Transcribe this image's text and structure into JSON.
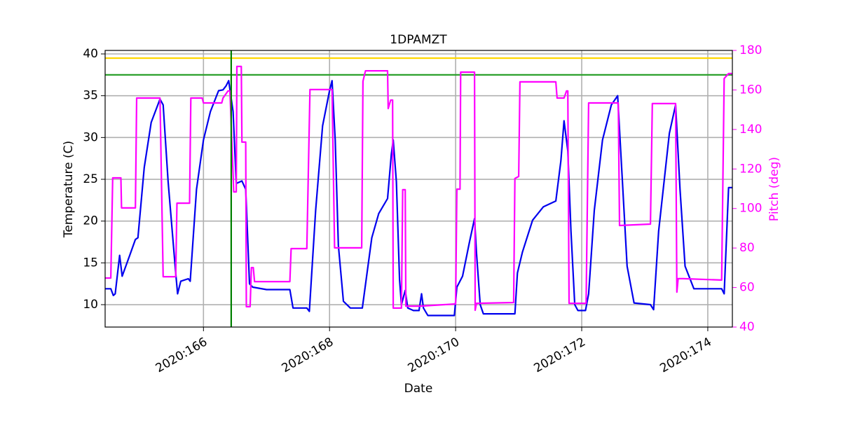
{
  "chart_data": {
    "type": "line",
    "title": "1DPAMZT",
    "x_label": "Date",
    "y_label": "Temperature (C)",
    "y2_label": "Pitch (deg)",
    "y2_color": "#ff00ff",
    "xlim": [
      164.44,
      174.39
    ],
    "xticks": [
      {
        "value": 166,
        "label": "2020:166"
      },
      {
        "value": 168,
        "label": "2020:168"
      },
      {
        "value": 170,
        "label": "2020:170"
      },
      {
        "value": 172,
        "label": "2020:172"
      },
      {
        "value": 174,
        "label": "2020:174"
      }
    ],
    "ylim": [
      7.32,
      40.42
    ],
    "yticks": [
      10,
      15,
      20,
      25,
      30,
      35,
      40
    ],
    "y2lim": [
      40,
      180
    ],
    "y2ticks": [
      40,
      60,
      80,
      100,
      120,
      140,
      160,
      180
    ],
    "grid": true,
    "hlines": [
      {
        "value": 39.5,
        "color": "#ffd700"
      },
      {
        "value": 37.5,
        "color": "#2ca02c"
      }
    ],
    "vlines": [
      {
        "value": 166.44,
        "color": "#008000"
      }
    ],
    "series": [
      {
        "name": "Temperature",
        "color": "#0000ee",
        "axis": "y",
        "x": [
          164.44,
          164.53,
          164.57,
          164.6,
          164.67,
          164.71,
          164.83,
          164.92,
          164.96,
          165.06,
          165.17,
          165.31,
          165.36,
          165.44,
          165.56,
          165.59,
          165.64,
          165.76,
          165.79,
          165.89,
          166.0,
          166.11,
          166.24,
          166.31,
          166.36,
          166.4,
          166.47,
          166.52,
          166.61,
          166.67,
          166.73,
          166.78,
          167.0,
          167.37,
          167.42,
          167.64,
          167.68,
          167.78,
          167.89,
          168.0,
          168.04,
          168.09,
          168.14,
          168.22,
          168.33,
          168.52,
          168.67,
          168.78,
          168.92,
          168.98,
          169.01,
          169.06,
          169.11,
          169.14,
          169.2,
          169.24,
          169.33,
          169.42,
          169.46,
          169.49,
          169.56,
          169.98,
          170.02,
          170.11,
          170.22,
          170.3,
          170.33,
          170.39,
          170.44,
          170.94,
          170.98,
          171.06,
          171.22,
          171.39,
          171.59,
          171.67,
          171.72,
          171.78,
          171.83,
          171.89,
          171.94,
          172.06,
          172.11,
          172.2,
          172.33,
          172.47,
          172.57,
          172.64,
          172.72,
          172.83,
          173.09,
          173.14,
          173.22,
          173.39,
          173.49,
          173.56,
          173.64,
          173.78,
          174.22,
          174.26,
          174.33,
          174.39
        ],
        "values": [
          11.9,
          11.9,
          11.1,
          11.3,
          15.9,
          13.4,
          15.9,
          17.8,
          18.0,
          26.4,
          31.8,
          34.6,
          33.9,
          24.7,
          13.8,
          11.3,
          12.8,
          13.1,
          12.8,
          23.8,
          29.7,
          33.1,
          35.6,
          35.7,
          36.2,
          36.8,
          33.1,
          24.5,
          24.8,
          23.8,
          12.5,
          12.1,
          11.8,
          11.8,
          9.6,
          9.6,
          9.2,
          21.3,
          31.4,
          35.6,
          36.8,
          29.7,
          17.1,
          10.4,
          9.6,
          9.6,
          18.0,
          20.9,
          22.7,
          28.0,
          29.7,
          24.7,
          13.0,
          10.0,
          11.7,
          9.6,
          9.3,
          9.3,
          11.3,
          9.6,
          8.7,
          8.7,
          12.1,
          13.4,
          17.5,
          20.3,
          16.3,
          10.0,
          8.9,
          8.9,
          13.8,
          16.3,
          20.1,
          21.7,
          22.4,
          27.2,
          32.0,
          28.4,
          18.8,
          10.0,
          9.3,
          9.3,
          11.3,
          21.3,
          29.7,
          33.9,
          35.0,
          25.5,
          14.6,
          10.2,
          10.0,
          9.4,
          18.8,
          30.5,
          33.9,
          23.8,
          14.6,
          11.9,
          11.9,
          11.3,
          24.0,
          24.0
        ]
      },
      {
        "name": "Pitch",
        "color": "#ff00ff",
        "axis": "y2",
        "x": [
          164.44,
          164.53,
          164.56,
          164.69,
          164.7,
          164.92,
          164.94,
          165.31,
          165.36,
          165.56,
          165.58,
          165.78,
          165.8,
          165.98,
          166.0,
          166.29,
          166.31,
          166.39,
          166.42,
          166.48,
          166.52,
          166.53,
          166.6,
          166.61,
          166.67,
          166.68,
          166.74,
          166.76,
          166.79,
          166.81,
          167.37,
          167.39,
          167.64,
          167.69,
          168.04,
          168.08,
          168.51,
          168.53,
          168.57,
          168.92,
          168.93,
          168.97,
          169.0,
          169.01,
          169.14,
          169.16,
          169.2,
          169.21,
          169.44,
          170.0,
          170.02,
          170.07,
          170.08,
          170.3,
          170.31,
          170.33,
          170.92,
          170.94,
          171.0,
          171.02,
          171.59,
          171.61,
          171.72,
          171.76,
          171.78,
          171.8,
          172.07,
          172.11,
          172.58,
          172.6,
          173.09,
          173.12,
          173.49,
          173.51,
          173.53,
          173.61,
          174.22,
          174.26,
          174.33,
          174.39
        ],
        "values": [
          64.8,
          64.8,
          115.5,
          115.5,
          100.3,
          100.3,
          155.9,
          155.9,
          65.5,
          65.5,
          102.7,
          102.7,
          155.9,
          155.9,
          153.4,
          153.4,
          155.9,
          159.5,
          159.5,
          108.4,
          108.4,
          171.9,
          171.9,
          133.6,
          133.6,
          50.3,
          50.3,
          70.1,
          70.1,
          63,
          63,
          79.7,
          79.7,
          160.2,
          160.2,
          80.1,
          80.1,
          164.4,
          169.7,
          169.7,
          150.6,
          154.9,
          154.9,
          49.6,
          49.6,
          109.5,
          109.5,
          50.6,
          50.6,
          51.7,
          109.8,
          109.8,
          169,
          169,
          48.5,
          52,
          52.4,
          115.2,
          116.2,
          164.1,
          164.1,
          155.9,
          155.9,
          159.5,
          159.5,
          52,
          52,
          153.4,
          153.4,
          91.4,
          92.1,
          153.1,
          153.1,
          57.7,
          64.5,
          64.5,
          63.8,
          165.8,
          168.3,
          168.3
        ]
      }
    ]
  }
}
